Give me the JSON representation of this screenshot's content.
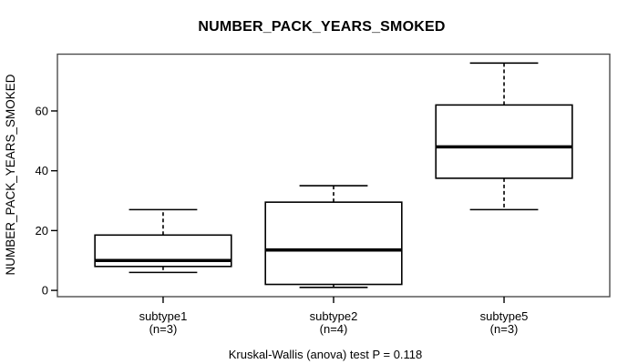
{
  "chart_data": {
    "type": "boxplot",
    "title": "NUMBER_PACK_YEARS_SMOKED",
    "ylabel": "NUMBER_PACK_YEARS_SMOKED",
    "xlabel": "",
    "caption": "Kruskal-Wallis (anova) test P = 0.118",
    "stat_test": {
      "name": "Kruskal-Wallis (anova) test",
      "p_value": 0.118
    },
    "yticks": [
      0,
      20,
      40,
      60
    ],
    "ylim": [
      -2.1,
      79
    ],
    "grid": false,
    "legend": null,
    "groups": [
      {
        "label": "subtype1",
        "n": 3,
        "n_label": "(n=3)",
        "whisker_low": 6,
        "q1": 8,
        "median": 10,
        "q3": 18.5,
        "whisker_high": 27
      },
      {
        "label": "subtype2",
        "n": 4,
        "n_label": "(n=4)",
        "whisker_low": 1,
        "q1": 2,
        "median": 13.5,
        "q3": 29.5,
        "whisker_high": 35
      },
      {
        "label": "subtype5",
        "n": 3,
        "n_label": "(n=3)",
        "whisker_low": 27,
        "q1": 37.5,
        "median": 48,
        "q3": 62,
        "whisker_high": 76
      }
    ],
    "colors": {
      "line": "#000000",
      "frame": "#4d4d4d",
      "box_fill": "#ffffff",
      "background": "#ffffff"
    }
  }
}
